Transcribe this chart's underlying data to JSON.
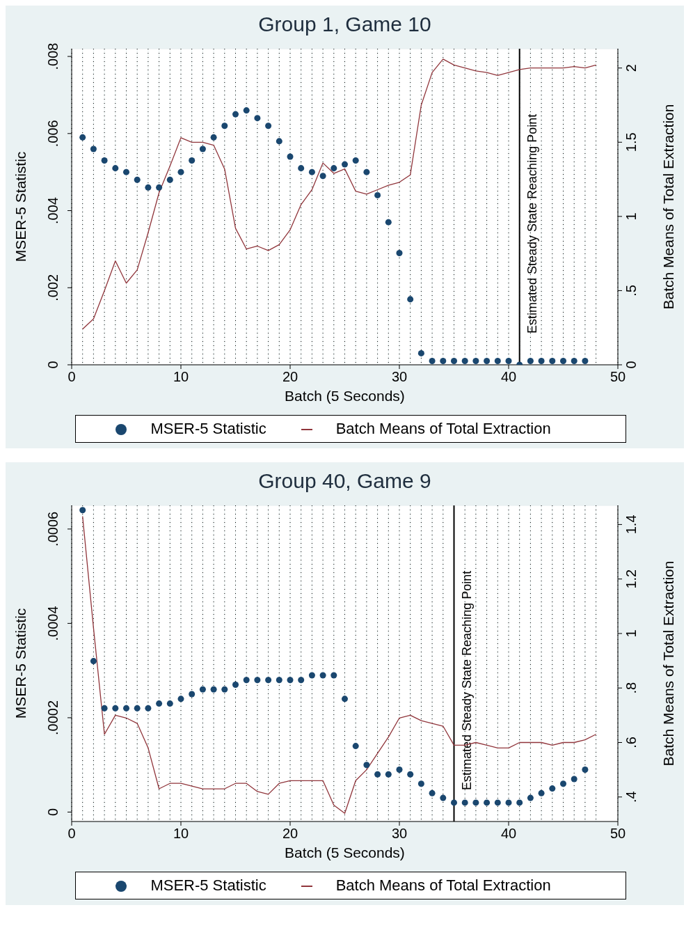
{
  "chart_data": [
    {
      "type": "scatter",
      "title": "Group 1, Game 10",
      "xlabel": "Batch (5 Seconds)",
      "ylabel": "MSER-5 Statistic",
      "y2label": "Batch Means of Total Extraction",
      "xlim": [
        0,
        50
      ],
      "xticks": [
        0,
        {
          "value": 1,
          "label": null
        },
        {
          "value": 2,
          "label": null
        },
        {
          "value": 3,
          "label": null
        },
        {
          "value": 4,
          "label": null
        },
        {
          "value": 5,
          "label": null
        },
        {
          "value": 6,
          "label": null
        },
        {
          "value": 7,
          "label": null
        },
        {
          "value": 8,
          "label": null
        },
        {
          "value": 9,
          "label": null
        },
        10,
        {
          "value": 11,
          "label": null
        },
        {
          "value": 12,
          "label": null
        },
        {
          "value": 13,
          "label": null
        },
        {
          "value": 14,
          "label": null
        },
        {
          "value": 15,
          "label": null
        },
        {
          "value": 16,
          "label": null
        },
        {
          "value": 17,
          "label": null
        },
        {
          "value": 18,
          "label": null
        },
        {
          "value": 19,
          "label": null
        },
        20,
        {
          "value": 21,
          "label": null
        },
        {
          "value": 22,
          "label": null
        },
        {
          "value": 23,
          "label": null
        },
        {
          "value": 24,
          "label": null
        },
        {
          "value": 25,
          "label": null
        },
        {
          "value": 26,
          "label": null
        },
        {
          "value": 27,
          "label": null
        },
        {
          "value": 28,
          "label": null
        },
        {
          "value": 29,
          "label": null
        },
        30,
        {
          "value": 31,
          "label": null
        },
        {
          "value": 32,
          "label": null
        },
        {
          "value": 33,
          "label": null
        },
        {
          "value": 34,
          "label": null
        },
        {
          "value": 35,
          "label": null
        },
        {
          "value": 36,
          "label": null
        },
        {
          "value": 37,
          "label": null
        },
        {
          "value": 38,
          "label": null
        },
        {
          "value": 39,
          "label": null
        },
        40,
        {
          "value": 41,
          "label": null
        },
        {
          "value": 42,
          "label": null
        },
        {
          "value": 43,
          "label": null
        },
        {
          "value": 44,
          "label": null
        },
        {
          "value": 45,
          "label": null
        },
        {
          "value": 46,
          "label": null
        },
        {
          "value": 47,
          "label": null
        },
        {
          "value": 48,
          "label": null
        },
        50
      ],
      "ylim": [
        0,
        0.0082
      ],
      "yticks": [
        0,
        {
          "value": 0.002,
          "label": ".002"
        },
        {
          "value": 0.004,
          "label": ".004"
        },
        {
          "value": 0.006,
          "label": ".006"
        },
        {
          "value": 0.008,
          "label": ".008"
        }
      ],
      "y2lim": [
        0,
        2.13
      ],
      "y2ticks": [
        0,
        {
          "value": 0.5,
          "label": ".5"
        },
        1,
        1.5,
        2
      ],
      "grid": true,
      "legend": "bottom",
      "line_style": "solid",
      "ref_lines": [
        {
          "axis": "x",
          "value": 41,
          "label": "Estimated Steady State Reaching Point",
          "color": "#000000"
        }
      ],
      "series": [
        {
          "name": "MSER-5 Statistic",
          "marker": "circle",
          "color": "#1a476f",
          "x": [
            1,
            2,
            3,
            4,
            5,
            6,
            7,
            8,
            9,
            10,
            11,
            12,
            13,
            14,
            15,
            16,
            17,
            18,
            19,
            20,
            21,
            22,
            23,
            24,
            25,
            26,
            27,
            28,
            29,
            30,
            31,
            32,
            33,
            34,
            35,
            36,
            37,
            38,
            39,
            40,
            41,
            42,
            43,
            44,
            45,
            46,
            47
          ],
          "values": [
            0.0059,
            0.0056,
            0.0053,
            0.0051,
            0.005,
            0.0048,
            0.0046,
            0.0046,
            0.0048,
            0.005,
            0.0053,
            0.0056,
            0.0059,
            0.0062,
            0.0065,
            0.0066,
            0.0064,
            0.0062,
            0.0058,
            0.0054,
            0.0051,
            0.005,
            0.0049,
            0.0051,
            0.0052,
            0.0053,
            0.005,
            0.0044,
            0.0037,
            0.0029,
            0.0017,
            0.0003,
            0.0001,
            0.0001,
            0.0001,
            0.0001,
            0.0001,
            0.0001,
            0.0001,
            0.0001,
            0.0,
            0.0001,
            0.0001,
            0.0001,
            0.0001,
            0.0001,
            0.0001
          ]
        },
        {
          "name": "Batch Means of Total Extraction",
          "type": "line",
          "axis": "y2",
          "color": "#90353b",
          "x": [
            1,
            2,
            3,
            4,
            5,
            6,
            7,
            8,
            9,
            10,
            11,
            12,
            13,
            14,
            15,
            16,
            17,
            18,
            19,
            20,
            21,
            22,
            23,
            24,
            25,
            26,
            27,
            28,
            29,
            30,
            31,
            32,
            33,
            34,
            35,
            36,
            37,
            38,
            39,
            40,
            41,
            42,
            43,
            44,
            45,
            46,
            47,
            48
          ],
          "values": [
            0.24,
            0.31,
            0.5,
            0.7,
            0.55,
            0.64,
            0.89,
            1.16,
            1.34,
            1.53,
            1.5,
            1.5,
            1.48,
            1.32,
            0.92,
            0.78,
            0.8,
            0.77,
            0.81,
            0.91,
            1.08,
            1.18,
            1.36,
            1.29,
            1.32,
            1.17,
            1.15,
            1.18,
            1.21,
            1.23,
            1.28,
            1.75,
            1.97,
            2.06,
            2.02,
            2.0,
            1.98,
            1.97,
            1.95,
            1.97,
            1.99,
            2.0,
            2.0,
            2.0,
            2.0,
            2.01,
            2.0,
            2.02
          ]
        }
      ]
    },
    {
      "type": "scatter",
      "title": "Group 40, Game 9",
      "xlabel": "Batch (5 Seconds)",
      "ylabel": "MSER-5 Statistic",
      "y2label": "Batch Means of Total Extraction",
      "xlim": [
        0,
        50
      ],
      "xticks": [
        0,
        {
          "value": 1,
          "label": null
        },
        {
          "value": 2,
          "label": null
        },
        {
          "value": 3,
          "label": null
        },
        {
          "value": 4,
          "label": null
        },
        {
          "value": 5,
          "label": null
        },
        {
          "value": 6,
          "label": null
        },
        {
          "value": 7,
          "label": null
        },
        {
          "value": 8,
          "label": null
        },
        {
          "value": 9,
          "label": null
        },
        10,
        {
          "value": 11,
          "label": null
        },
        {
          "value": 12,
          "label": null
        },
        {
          "value": 13,
          "label": null
        },
        {
          "value": 14,
          "label": null
        },
        {
          "value": 15,
          "label": null
        },
        {
          "value": 16,
          "label": null
        },
        {
          "value": 17,
          "label": null
        },
        {
          "value": 18,
          "label": null
        },
        {
          "value": 19,
          "label": null
        },
        20,
        {
          "value": 21,
          "label": null
        },
        {
          "value": 22,
          "label": null
        },
        {
          "value": 23,
          "label": null
        },
        {
          "value": 24,
          "label": null
        },
        {
          "value": 25,
          "label": null
        },
        {
          "value": 26,
          "label": null
        },
        {
          "value": 27,
          "label": null
        },
        {
          "value": 28,
          "label": null
        },
        {
          "value": 29,
          "label": null
        },
        30,
        {
          "value": 31,
          "label": null
        },
        {
          "value": 32,
          "label": null
        },
        {
          "value": 33,
          "label": null
        },
        {
          "value": 34,
          "label": null
        },
        {
          "value": 35,
          "label": null
        },
        {
          "value": 36,
          "label": null
        },
        {
          "value": 37,
          "label": null
        },
        {
          "value": 38,
          "label": null
        },
        {
          "value": 39,
          "label": null
        },
        40,
        {
          "value": 41,
          "label": null
        },
        {
          "value": 42,
          "label": null
        },
        {
          "value": 43,
          "label": null
        },
        {
          "value": 44,
          "label": null
        },
        {
          "value": 45,
          "label": null
        },
        {
          "value": 46,
          "label": null
        },
        {
          "value": 47,
          "label": null
        },
        {
          "value": 48,
          "label": null
        },
        50
      ],
      "ylim": [
        -2e-05,
        0.00065
      ],
      "yticks": [
        0,
        {
          "value": 0.0002,
          "label": ".0002"
        },
        {
          "value": 0.0004,
          "label": ".0004"
        },
        {
          "value": 0.0006,
          "label": ".0006"
        }
      ],
      "y2lim": [
        0.31,
        1.47
      ],
      "y2ticks": [
        {
          "value": 0.4,
          "label": ".4"
        },
        {
          "value": 0.6,
          "label": ".6"
        },
        {
          "value": 0.8,
          "label": ".8"
        },
        1,
        1.2,
        1.4
      ],
      "grid": true,
      "legend": "bottom",
      "line_style": "solid",
      "ref_lines": [
        {
          "axis": "x",
          "value": 35,
          "label": "Estimated Steady State Reaching Point",
          "color": "#000000"
        }
      ],
      "series": [
        {
          "name": "MSER-5 Statistic",
          "marker": "circle",
          "color": "#1a476f",
          "x": [
            1,
            2,
            3,
            4,
            5,
            6,
            7,
            8,
            9,
            10,
            11,
            12,
            13,
            14,
            15,
            16,
            17,
            18,
            19,
            20,
            21,
            22,
            23,
            24,
            25,
            26,
            27,
            28,
            29,
            30,
            31,
            32,
            33,
            34,
            35,
            36,
            37,
            38,
            39,
            40,
            41,
            42,
            43,
            44,
            45,
            46,
            47
          ],
          "values": [
            0.00064,
            0.00032,
            0.00022,
            0.00022,
            0.00022,
            0.00022,
            0.00022,
            0.00023,
            0.00023,
            0.00024,
            0.00025,
            0.00026,
            0.00026,
            0.00026,
            0.00027,
            0.00028,
            0.00028,
            0.00028,
            0.00028,
            0.00028,
            0.00028,
            0.00029,
            0.00029,
            0.00029,
            0.00024,
            0.00014,
            0.0001,
            8e-05,
            8e-05,
            9e-05,
            8e-05,
            6e-05,
            4e-05,
            3e-05,
            2e-05,
            2e-05,
            2e-05,
            2e-05,
            2e-05,
            2e-05,
            2e-05,
            3e-05,
            4e-05,
            5e-05,
            6e-05,
            7e-05,
            9e-05
          ]
        },
        {
          "name": "Batch Means of Total Extraction",
          "type": "line",
          "axis": "y2",
          "color": "#90353b",
          "x": [
            1,
            2,
            3,
            4,
            5,
            6,
            7,
            8,
            9,
            10,
            11,
            12,
            13,
            14,
            15,
            16,
            17,
            18,
            19,
            20,
            21,
            22,
            23,
            24,
            25,
            26,
            27,
            28,
            29,
            30,
            31,
            32,
            33,
            34,
            35,
            36,
            37,
            38,
            39,
            40,
            41,
            42,
            43,
            44,
            45,
            46,
            47,
            48
          ],
          "values": [
            1.43,
            1.02,
            0.63,
            0.7,
            0.69,
            0.67,
            0.58,
            0.43,
            0.45,
            0.45,
            0.44,
            0.43,
            0.43,
            0.43,
            0.45,
            0.45,
            0.42,
            0.41,
            0.45,
            0.46,
            0.46,
            0.46,
            0.46,
            0.37,
            0.34,
            0.46,
            0.5,
            0.56,
            0.62,
            0.69,
            0.7,
            0.68,
            0.67,
            0.66,
            0.59,
            0.59,
            0.6,
            0.59,
            0.58,
            0.58,
            0.6,
            0.6,
            0.6,
            0.59,
            0.6,
            0.6,
            0.61,
            0.63
          ]
        }
      ]
    }
  ]
}
